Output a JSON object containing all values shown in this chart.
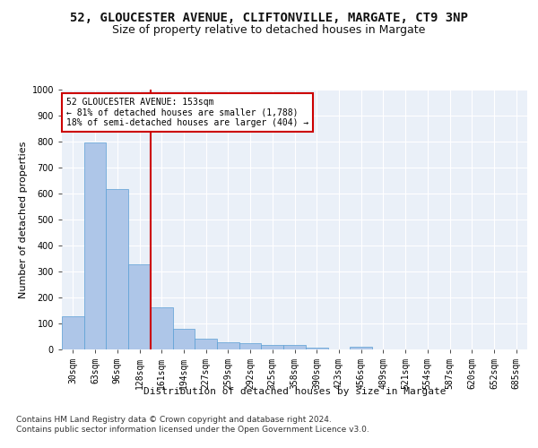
{
  "title1": "52, GLOUCESTER AVENUE, CLIFTONVILLE, MARGATE, CT9 3NP",
  "title2": "Size of property relative to detached houses in Margate",
  "xlabel": "Distribution of detached houses by size in Margate",
  "ylabel": "Number of detached properties",
  "bar_labels": [
    "30sqm",
    "63sqm",
    "96sqm",
    "128sqm",
    "161sqm",
    "194sqm",
    "227sqm",
    "259sqm",
    "292sqm",
    "325sqm",
    "358sqm",
    "390sqm",
    "423sqm",
    "456sqm",
    "489sqm",
    "521sqm",
    "554sqm",
    "587sqm",
    "620sqm",
    "652sqm",
    "685sqm"
  ],
  "bar_values": [
    126,
    795,
    617,
    329,
    162,
    80,
    40,
    27,
    24,
    17,
    17,
    7,
    0,
    10,
    0,
    0,
    0,
    0,
    0,
    0,
    0
  ],
  "bar_color": "#aec6e8",
  "bar_edge_color": "#5a9fd4",
  "vline_pos": 3.5,
  "vline_color": "#cc0000",
  "annotation_text": "52 GLOUCESTER AVENUE: 153sqm\n← 81% of detached houses are smaller (1,788)\n18% of semi-detached houses are larger (404) →",
  "annotation_box_color": "#ffffff",
  "annotation_box_edge": "#cc0000",
  "ylim": [
    0,
    1000
  ],
  "yticks": [
    0,
    100,
    200,
    300,
    400,
    500,
    600,
    700,
    800,
    900,
    1000
  ],
  "bg_color": "#eaf0f8",
  "footer_line1": "Contains HM Land Registry data © Crown copyright and database right 2024.",
  "footer_line2": "Contains public sector information licensed under the Open Government Licence v3.0.",
  "title1_fontsize": 10,
  "title2_fontsize": 9,
  "axis_label_fontsize": 8,
  "tick_fontsize": 7,
  "footer_fontsize": 6.5,
  "annotation_fontsize": 7
}
